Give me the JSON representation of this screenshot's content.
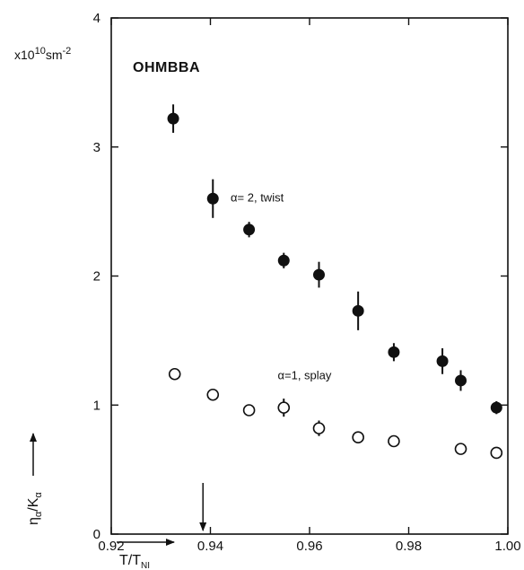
{
  "chart_data": {
    "type": "scatter",
    "title": "",
    "sample_label": "OHMBBA",
    "y_unit_prefix": "x10",
    "y_unit_exponent": "10",
    "y_unit_base": "sm",
    "y_unit_power": "-2",
    "ylabel_main": "η",
    "ylabel_main_sub": "α",
    "ylabel_slash": "/K",
    "ylabel_denom_sub": "α",
    "xlabel_main": "T/T",
    "xlabel_sub": "NI",
    "xlim": [
      0.92,
      1.0
    ],
    "ylim": [
      0,
      4
    ],
    "x_ticks": [
      "0.92",
      "0.94",
      "0.96",
      "0.98",
      "1.00"
    ],
    "x_tick_values": [
      0.92,
      0.94,
      0.96,
      0.98,
      1.0
    ],
    "y_ticks": [
      "0",
      "1",
      "2",
      "3",
      "4"
    ],
    "y_tick_values": [
      0,
      1,
      2,
      3,
      4
    ],
    "marker_x": 0.9385,
    "grid": false,
    "series": [
      {
        "name": "α= 2, twist",
        "marker": "filled-circle",
        "label_at": [
          0.941,
          2.6
        ],
        "points": [
          {
            "x": 0.9325,
            "y": 3.22,
            "err": 0.11
          },
          {
            "x": 0.9405,
            "y": 2.6,
            "err": 0.15
          },
          {
            "x": 0.9478,
            "y": 2.36,
            "err": 0.06
          },
          {
            "x": 0.9548,
            "y": 2.12,
            "err": 0.06
          },
          {
            "x": 0.9619,
            "y": 2.01,
            "err": 0.1
          },
          {
            "x": 0.9698,
            "y": 1.73,
            "err": 0.15
          },
          {
            "x": 0.977,
            "y": 1.41,
            "err": 0.07
          },
          {
            "x": 0.9868,
            "y": 1.34,
            "err": 0.1
          },
          {
            "x": 0.9905,
            "y": 1.19,
            "err": 0.08
          },
          {
            "x": 0.9977,
            "y": 0.98,
            "err": 0.05
          }
        ]
      },
      {
        "name": "α=1, splay",
        "marker": "open-circle",
        "label_at": [
          0.9505,
          1.22
        ],
        "points": [
          {
            "x": 0.9328,
            "y": 1.24,
            "err": 0.0
          },
          {
            "x": 0.9405,
            "y": 1.08,
            "err": 0.0
          },
          {
            "x": 0.9478,
            "y": 0.96,
            "err": 0.0
          },
          {
            "x": 0.9548,
            "y": 0.98,
            "err": 0.07
          },
          {
            "x": 0.9619,
            "y": 0.82,
            "err": 0.06
          },
          {
            "x": 0.9698,
            "y": 0.75,
            "err": 0.0
          },
          {
            "x": 0.977,
            "y": 0.72,
            "err": 0.0
          },
          {
            "x": 0.9905,
            "y": 0.66,
            "err": 0.0
          },
          {
            "x": 0.9977,
            "y": 0.63,
            "err": 0.0
          }
        ]
      }
    ]
  }
}
